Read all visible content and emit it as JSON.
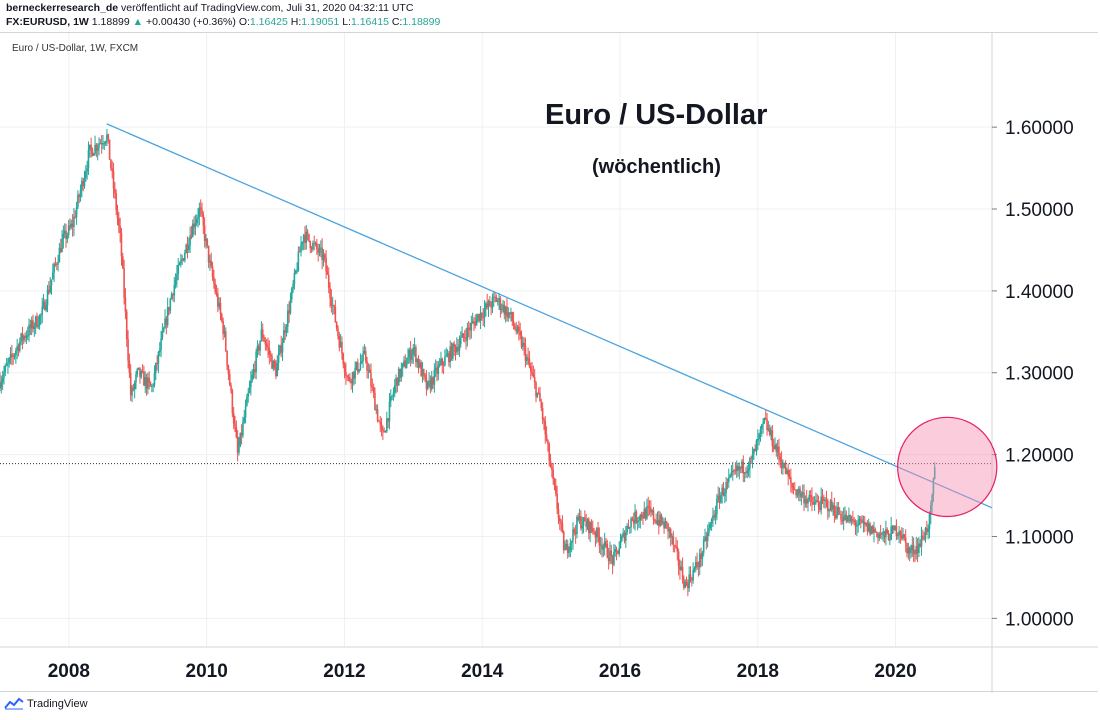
{
  "header": {
    "publisher": "berneckerresearch_de",
    "published_text": "veröffentlicht auf TradingView.com, Juli 31, 2020 04:32:11 UTC",
    "symbol": "FX:EURUSD, 1W",
    "last": "1.18899",
    "change": "+0.00430 (+0.36%)",
    "o_label": "O:",
    "o": "1.16425",
    "h_label": "H:",
    "h": "1.19051",
    "l_label": "L:",
    "l": "1.16415",
    "c_label": "C:",
    "c": "1.18899",
    "arrow": "▲"
  },
  "legend": "Euro / US-Dollar, 1W, FXCM",
  "footer": {
    "brand": "TradingView"
  },
  "colors": {
    "up": "#26a69a",
    "down": "#ef5350",
    "trendline": "#4aa3df",
    "circle_fill": "#f48fb1",
    "circle_stroke": "#e91e63"
  },
  "chart_data": {
    "type": "candlestick",
    "title": "Euro / US-Dollar",
    "subtitle": "(wöchentlich)",
    "x_tick_labels": [
      "2008",
      "2010",
      "2012",
      "2014",
      "2016",
      "2018",
      "2020"
    ],
    "x_range": [
      2007.0,
      2021.4
    ],
    "y_tick_labels": [
      "1.00000",
      "1.10000",
      "1.20000",
      "1.30000",
      "1.40000",
      "1.50000",
      "1.60000"
    ],
    "y_ticks": [
      1.0,
      1.1,
      1.2,
      1.3,
      1.4,
      1.5,
      1.6
    ],
    "y_range": [
      0.965,
      1.715
    ],
    "current_price": 1.18899,
    "trendline": {
      "x1": 2008.55,
      "y1": 1.604,
      "x2": 2021.4,
      "y2": 1.135
    },
    "highlight_circle": {
      "x": 2020.75,
      "y": 1.185,
      "radius_years": 0.72
    },
    "price_path": [
      [
        2007.0,
        1.29
      ],
      [
        2007.3,
        1.34
      ],
      [
        2007.6,
        1.37
      ],
      [
        2007.9,
        1.46
      ],
      [
        2008.05,
        1.48
      ],
      [
        2008.3,
        1.57
      ],
      [
        2008.55,
        1.59
      ],
      [
        2008.75,
        1.46
      ],
      [
        2008.9,
        1.27
      ],
      [
        2009.0,
        1.3
      ],
      [
        2009.2,
        1.28
      ],
      [
        2009.5,
        1.4
      ],
      [
        2009.8,
        1.48
      ],
      [
        2009.9,
        1.5
      ],
      [
        2010.05,
        1.43
      ],
      [
        2010.25,
        1.35
      ],
      [
        2010.45,
        1.2
      ],
      [
        2010.6,
        1.27
      ],
      [
        2010.8,
        1.35
      ],
      [
        2011.0,
        1.3
      ],
      [
        2011.2,
        1.38
      ],
      [
        2011.4,
        1.47
      ],
      [
        2011.7,
        1.44
      ],
      [
        2011.9,
        1.35
      ],
      [
        2012.05,
        1.29
      ],
      [
        2012.3,
        1.32
      ],
      [
        2012.55,
        1.22
      ],
      [
        2012.75,
        1.29
      ],
      [
        2013.0,
        1.33
      ],
      [
        2013.2,
        1.28
      ],
      [
        2013.4,
        1.31
      ],
      [
        2013.7,
        1.34
      ],
      [
        2013.95,
        1.37
      ],
      [
        2014.2,
        1.39
      ],
      [
        2014.4,
        1.37
      ],
      [
        2014.6,
        1.33
      ],
      [
        2014.85,
        1.26
      ],
      [
        2015.0,
        1.18
      ],
      [
        2015.2,
        1.08
      ],
      [
        2015.4,
        1.12
      ],
      [
        2015.6,
        1.11
      ],
      [
        2015.9,
        1.07
      ],
      [
        2016.15,
        1.12
      ],
      [
        2016.4,
        1.13
      ],
      [
        2016.7,
        1.11
      ],
      [
        2016.95,
        1.04
      ],
      [
        2017.15,
        1.07
      ],
      [
        2017.45,
        1.15
      ],
      [
        2017.7,
        1.18
      ],
      [
        2017.9,
        1.19
      ],
      [
        2018.1,
        1.24
      ],
      [
        2018.3,
        1.2
      ],
      [
        2018.5,
        1.16
      ],
      [
        2018.8,
        1.14
      ],
      [
        2019.0,
        1.14
      ],
      [
        2019.3,
        1.12
      ],
      [
        2019.6,
        1.11
      ],
      [
        2019.85,
        1.1
      ],
      [
        2020.05,
        1.11
      ],
      [
        2020.2,
        1.08
      ],
      [
        2020.35,
        1.09
      ],
      [
        2020.5,
        1.12
      ],
      [
        2020.58,
        1.189
      ]
    ]
  }
}
